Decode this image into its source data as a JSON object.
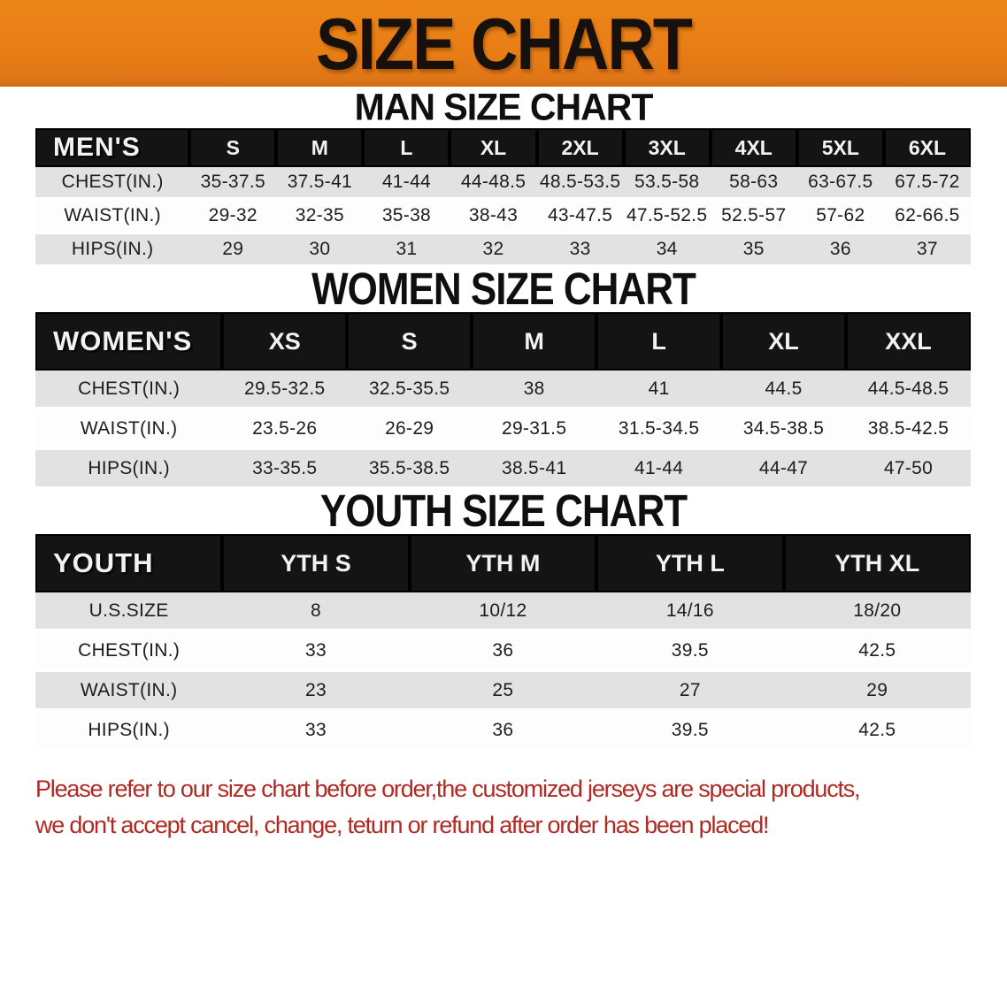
{
  "banner": {
    "title": "SIZE CHART",
    "bg_color": "#e87d16",
    "text_color": "#17110d"
  },
  "chart_data": [
    {
      "type": "table",
      "heading": "MAN SIZE CHART",
      "header_label": "MEN'S",
      "columns": [
        "S",
        "M",
        "L",
        "XL",
        "2XL",
        "3XL",
        "4XL",
        "5XL",
        "6XL"
      ],
      "rows": [
        {
          "label": "CHEST(IN.)",
          "values": [
            "35-37.5",
            "37.5-41",
            "41-44",
            "44-48.5",
            "48.5-53.5",
            "53.5-58",
            "58-63",
            "63-67.5",
            "67.5-72"
          ]
        },
        {
          "label": "WAIST(IN.)",
          "values": [
            "29-32",
            "32-35",
            "35-38",
            "38-43",
            "43-47.5",
            "47.5-52.5",
            "52.5-57",
            "57-62",
            "62-66.5"
          ]
        },
        {
          "label": "HIPS(IN.)",
          "values": [
            "29",
            "30",
            "31",
            "32",
            "33",
            "34",
            "35",
            "36",
            "37"
          ]
        }
      ]
    },
    {
      "type": "table",
      "heading": "WOMEN SIZE CHART",
      "header_label": "WOMEN'S",
      "columns": [
        "XS",
        "S",
        "M",
        "L",
        "XL",
        "XXL"
      ],
      "rows": [
        {
          "label": "CHEST(IN.)",
          "values": [
            "29.5-32.5",
            "32.5-35.5",
            "38",
            "41",
            "44.5",
            "44.5-48.5"
          ]
        },
        {
          "label": "WAIST(IN.)",
          "values": [
            "23.5-26",
            "26-29",
            "29-31.5",
            "31.5-34.5",
            "34.5-38.5",
            "38.5-42.5"
          ]
        },
        {
          "label": "HIPS(IN.)",
          "values": [
            "33-35.5",
            "35.5-38.5",
            "38.5-41",
            "41-44",
            "44-47",
            "47-50"
          ]
        }
      ]
    },
    {
      "type": "table",
      "heading": "YOUTH SIZE CHART",
      "header_label": "YOUTH",
      "columns": [
        "YTH S",
        "YTH M",
        "YTH L",
        "YTH XL"
      ],
      "rows": [
        {
          "label": "U.S.SIZE",
          "values": [
            "8",
            "10/12",
            "14/16",
            "18/20"
          ]
        },
        {
          "label": "CHEST(IN.)",
          "values": [
            "33",
            "36",
            "39.5",
            "42.5"
          ]
        },
        {
          "label": "WAIST(IN.)",
          "values": [
            "23",
            "25",
            "27",
            "29"
          ]
        },
        {
          "label": "HIPS(IN.)",
          "values": [
            "33",
            "36",
            "39.5",
            "42.5"
          ]
        }
      ]
    }
  ],
  "table_style": {
    "header_bg": "#141414",
    "header_text": "#f2f2f2",
    "stripe_bg": "#e2e2e2"
  },
  "footer_note": {
    "line1": "Please refer to our size chart before order,the customized jerseys are special products,",
    "line2": "we don't accept cancel, change, teturn or refund after order has been placed!",
    "color": "#b02a23"
  }
}
